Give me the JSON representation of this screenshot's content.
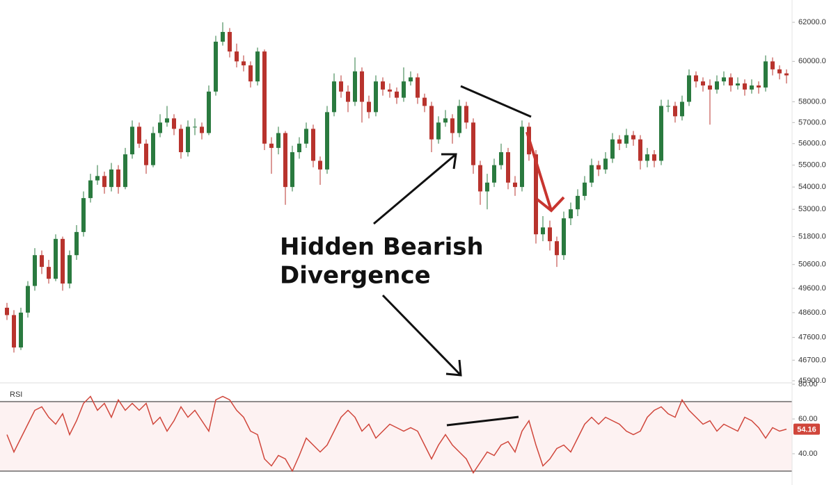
{
  "chart_data": [
    {
      "type": "candlestick",
      "log_scale": true,
      "up_color": "#2a7a3f",
      "down_color": "#b8332d",
      "ylim": [
        45900,
        63170
      ],
      "yticks": [
        {
          "value": 62000,
          "label": "62000.0"
        },
        {
          "value": 60000,
          "label": "60000.0"
        },
        {
          "value": 58000,
          "label": "58000.0"
        },
        {
          "value": 57000,
          "label": "57000.0"
        },
        {
          "value": 56000,
          "label": "56000.0"
        },
        {
          "value": 55000,
          "label": "55000.0"
        },
        {
          "value": 54000,
          "label": "54000.0"
        },
        {
          "value": 53000,
          "label": "53000.0"
        },
        {
          "value": 51800,
          "label": "51800.0"
        },
        {
          "value": 50600,
          "label": "50600.0"
        },
        {
          "value": 49600,
          "label": "49600.0"
        },
        {
          "value": 48600,
          "label": "48600.0"
        },
        {
          "value": 47600,
          "label": "47600.0"
        },
        {
          "value": 46700,
          "label": "46700.0"
        },
        {
          "value": 45900,
          "label": "45900.0"
        }
      ],
      "annotation": [
        "Hidden Bearish",
        "Divergence"
      ],
      "ohlc": [
        [
          48800,
          49000,
          48300,
          48500
        ],
        [
          48500,
          48700,
          47000,
          47200
        ],
        [
          47200,
          48800,
          47100,
          48600
        ],
        [
          48600,
          49900,
          48400,
          49700
        ],
        [
          49700,
          51300,
          49500,
          51000
        ],
        [
          51000,
          51200,
          50200,
          50500
        ],
        [
          50500,
          50800,
          49800,
          50000
        ],
        [
          50000,
          51900,
          49900,
          51700
        ],
        [
          51700,
          51800,
          49500,
          49800
        ],
        [
          49800,
          51200,
          49600,
          51000
        ],
        [
          51000,
          52300,
          50800,
          52000
        ],
        [
          52000,
          53800,
          51800,
          53500
        ],
        [
          53500,
          54600,
          53300,
          54300
        ],
        [
          54300,
          55000,
          54100,
          54500
        ],
        [
          54500,
          54700,
          53700,
          54000
        ],
        [
          54000,
          55100,
          53800,
          54800
        ],
        [
          54800,
          55000,
          53700,
          54000
        ],
        [
          54000,
          55800,
          53900,
          55500
        ],
        [
          55500,
          57100,
          55300,
          56800
        ],
        [
          56800,
          57000,
          55800,
          56000
        ],
        [
          56000,
          56200,
          54600,
          55000
        ],
        [
          55000,
          56800,
          54900,
          56500
        ],
        [
          56500,
          57400,
          56300,
          57000
        ],
        [
          57000,
          57800,
          56800,
          57200
        ],
        [
          57200,
          57400,
          56400,
          56700
        ],
        [
          56700,
          56900,
          55300,
          55600
        ],
        [
          55600,
          57100,
          55400,
          56800
        ],
        [
          56800,
          57200,
          56400,
          56800
        ],
        [
          56800,
          57000,
          56200,
          56500
        ],
        [
          56500,
          58800,
          56400,
          58500
        ],
        [
          58500,
          61300,
          58300,
          61000
        ],
        [
          61000,
          62000,
          60800,
          61500
        ],
        [
          61500,
          61700,
          60200,
          60500
        ],
        [
          60500,
          60900,
          59700,
          60000
        ],
        [
          60000,
          60300,
          59500,
          59800
        ],
        [
          59800,
          60000,
          58700,
          59000
        ],
        [
          59000,
          60700,
          58800,
          60500
        ],
        [
          60500,
          60600,
          55700,
          56000
        ],
        [
          56000,
          56300,
          54600,
          55800
        ],
        [
          55800,
          56800,
          55500,
          56500
        ],
        [
          56500,
          56600,
          53200,
          54000
        ],
        [
          54000,
          55900,
          53800,
          55600
        ],
        [
          55600,
          56300,
          55300,
          56000
        ],
        [
          56000,
          57000,
          55800,
          56700
        ],
        [
          56700,
          56900,
          54900,
          55200
        ],
        [
          55200,
          55400,
          54100,
          54800
        ],
        [
          54800,
          57800,
          54600,
          57500
        ],
        [
          57500,
          59400,
          57300,
          59000
        ],
        [
          59000,
          59300,
          58200,
          58500
        ],
        [
          58500,
          58800,
          57500,
          58000
        ],
        [
          58000,
          60200,
          57800,
          59500
        ],
        [
          59500,
          59700,
          57000,
          58000
        ],
        [
          58000,
          58300,
          57200,
          57500
        ],
        [
          57500,
          59300,
          57300,
          59000
        ],
        [
          59000,
          59200,
          58300,
          58600
        ],
        [
          58600,
          58900,
          58200,
          58500
        ],
        [
          58500,
          58700,
          57900,
          58200
        ],
        [
          58200,
          59700,
          58000,
          59000
        ],
        [
          59000,
          59500,
          58800,
          59200
        ],
        [
          59200,
          59400,
          57900,
          58200
        ],
        [
          58200,
          58400,
          57500,
          57800
        ],
        [
          57800,
          58000,
          55600,
          56200
        ],
        [
          56200,
          57300,
          56000,
          57000
        ],
        [
          57000,
          57600,
          56800,
          57200
        ],
        [
          57200,
          57400,
          56000,
          56500
        ],
        [
          56500,
          58100,
          56300,
          57800
        ],
        [
          57800,
          58000,
          56700,
          57000
        ],
        [
          57000,
          57200,
          54600,
          55000
        ],
        [
          55000,
          55200,
          53200,
          53800
        ],
        [
          53800,
          54600,
          53000,
          54200
        ],
        [
          54200,
          55300,
          54000,
          55000
        ],
        [
          55000,
          56000,
          54800,
          55600
        ],
        [
          55600,
          55800,
          53900,
          54200
        ],
        [
          54200,
          54500,
          53600,
          54000
        ],
        [
          54000,
          57100,
          53800,
          56800
        ],
        [
          56800,
          57000,
          55200,
          55500
        ],
        [
          55500,
          55700,
          51500,
          51900
        ],
        [
          51900,
          52700,
          51600,
          52200
        ],
        [
          52200,
          52500,
          51200,
          51600
        ],
        [
          51600,
          51800,
          50500,
          51000
        ],
        [
          51000,
          52900,
          50800,
          52600
        ],
        [
          52600,
          53300,
          52300,
          53000
        ],
        [
          53000,
          53900,
          52700,
          53600
        ],
        [
          53600,
          54500,
          53400,
          54200
        ],
        [
          54200,
          55300,
          54000,
          55000
        ],
        [
          55000,
          55200,
          54500,
          54800
        ],
        [
          54800,
          55600,
          54600,
          55300
        ],
        [
          55300,
          56500,
          55100,
          56200
        ],
        [
          56200,
          56400,
          55700,
          56000
        ],
        [
          56000,
          56700,
          55800,
          56400
        ],
        [
          56400,
          56600,
          55900,
          56200
        ],
        [
          56200,
          56400,
          54800,
          55200
        ],
        [
          55200,
          55800,
          54900,
          55500
        ],
        [
          55500,
          55700,
          54900,
          55200
        ],
        [
          55200,
          58100,
          55000,
          57800
        ],
        [
          57800,
          58100,
          57500,
          57800
        ],
        [
          57800,
          58000,
          57000,
          57300
        ],
        [
          57300,
          58300,
          57100,
          58000
        ],
        [
          58000,
          59600,
          57800,
          59300
        ],
        [
          59300,
          59500,
          58700,
          59000
        ],
        [
          59000,
          59200,
          58500,
          58800
        ],
        [
          58800,
          59100,
          56900,
          58600
        ],
        [
          58600,
          59300,
          58400,
          59000
        ],
        [
          59000,
          59500,
          58800,
          59200
        ],
        [
          59200,
          59400,
          58500,
          58800
        ],
        [
          58800,
          59200,
          58600,
          58900
        ],
        [
          58900,
          59100,
          58300,
          58600
        ],
        [
          58600,
          59100,
          58400,
          58800
        ],
        [
          58800,
          59000,
          58400,
          58700
        ],
        [
          58700,
          60300,
          58500,
          60000
        ],
        [
          60000,
          60200,
          59300,
          59600
        ],
        [
          59600,
          59800,
          59100,
          59400
        ],
        [
          59400,
          59600,
          58900,
          59300
        ]
      ]
    },
    {
      "type": "line",
      "title": "RSI",
      "color": "#d0463b",
      "level_color": "#222",
      "band_color": "#fdf2f2",
      "ylim": [
        22,
        80
      ],
      "levels": [
        70,
        30
      ],
      "yticks": [
        {
          "value": 80,
          "label": "80.00"
        },
        {
          "value": 60,
          "label": "60.00"
        },
        {
          "value": 40,
          "label": "40.00"
        }
      ],
      "values": [
        51,
        41,
        49,
        57,
        65,
        67,
        61,
        57,
        63,
        51,
        59,
        69,
        73,
        65,
        69,
        61,
        71,
        65,
        69,
        65,
        69,
        57,
        61,
        53,
        59,
        67,
        61,
        65,
        59,
        53,
        71,
        73,
        71,
        65,
        61,
        53,
        51,
        37,
        33,
        39,
        37,
        30,
        39,
        49,
        45,
        41,
        45,
        53,
        61,
        65,
        61,
        53,
        57,
        49,
        53,
        57,
        55,
        53,
        55,
        53,
        45,
        37,
        45,
        51,
        45,
        41,
        37,
        29,
        35,
        41,
        39,
        45,
        47,
        41,
        53,
        59,
        45,
        33,
        37,
        43,
        45,
        41,
        49,
        57,
        61,
        57,
        61,
        59,
        57,
        53,
        51,
        53,
        61,
        65,
        67,
        63,
        61,
        71,
        65,
        61,
        57,
        59,
        53,
        57,
        55,
        53,
        61,
        59,
        55,
        49,
        55,
        53,
        54.16
      ]
    }
  ]
}
